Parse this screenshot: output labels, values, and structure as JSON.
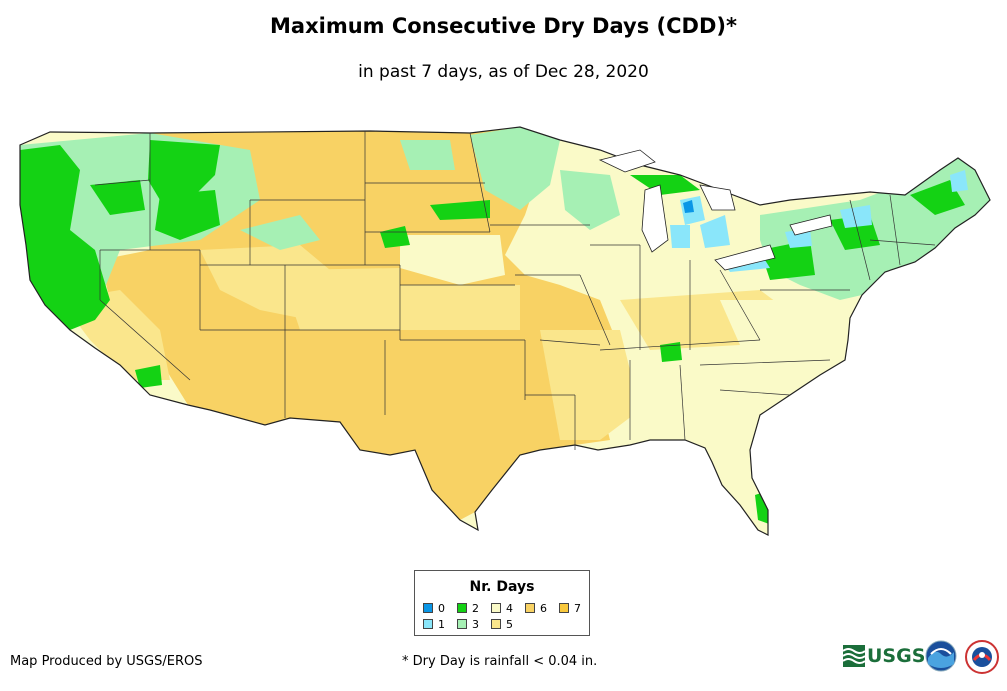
{
  "title": "Maximum Consecutive Dry Days (CDD)*",
  "subtitle": "in past 7 days, as of Dec 28, 2020",
  "legend": {
    "title": "Nr. Days",
    "items": [
      {
        "label": "0",
        "color": "#0a96e6"
      },
      {
        "label": "1",
        "color": "#8ae6fa"
      },
      {
        "label": "2",
        "color": "#14d214"
      },
      {
        "label": "3",
        "color": "#a6f0b4"
      },
      {
        "label": "4",
        "color": "#fafac8"
      },
      {
        "label": "5",
        "color": "#fae68c"
      },
      {
        "label": "6",
        "color": "#f8d264"
      },
      {
        "label": "7",
        "color": "#f8c83c"
      }
    ]
  },
  "footer": {
    "credit": "Map Produced by USGS/EROS",
    "footnote": "* Dry Day is rainfall < 0.04 in."
  },
  "logos": {
    "usgs": "USGS",
    "usgs_icon": "usgs-wave-icon",
    "noaa_icon": "noaa-logo-icon",
    "nws_icon": "nws-logo-icon"
  }
}
